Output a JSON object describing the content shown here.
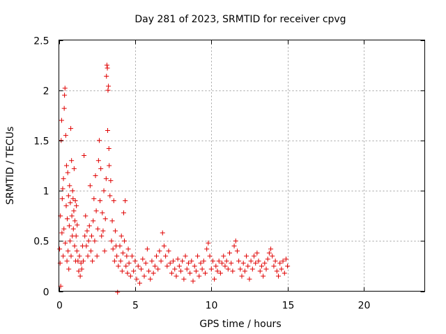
{
  "chart_data": {
    "type": "scatter",
    "title": "Day 281 of 2023, SRMTID for receiver cpvg",
    "xlabel": "GPS time / hours",
    "ylabel": "SRMTID / TECUs",
    "xlim": [
      0,
      24
    ],
    "ylim": [
      0,
      2.5
    ],
    "xticks": [
      0,
      5,
      10,
      15,
      20
    ],
    "xtick_labels": [
      "0",
      "5",
      "10",
      "15",
      "20"
    ],
    "yticks": [
      0,
      0.5,
      1,
      1.5,
      2,
      2.5
    ],
    "ytick_labels": [
      "0",
      "0.5",
      "1",
      "1.5",
      "2",
      "2.5"
    ],
    "grid": true,
    "marker": "+",
    "marker_color": "#e00000",
    "series": [
      {
        "name": "SRMTID",
        "points": [
          [
            0.05,
            0.42
          ],
          [
            0.08,
            0.28
          ],
          [
            0.1,
            0.75
          ],
          [
            0.12,
            0.05
          ],
          [
            0.15,
            1.5
          ],
          [
            0.18,
            1.7
          ],
          [
            0.2,
            0.58
          ],
          [
            0.22,
            0.92
          ],
          [
            0.25,
            1.02
          ],
          [
            0.28,
            0.35
          ],
          [
            0.3,
            1.12
          ],
          [
            0.33,
            0.62
          ],
          [
            0.35,
            1.82
          ],
          [
            0.37,
            1.95
          ],
          [
            0.4,
            2.02
          ],
          [
            0.42,
            0.48
          ],
          [
            0.45,
            1.55
          ],
          [
            0.48,
            0.85
          ],
          [
            0.5,
            1.25
          ],
          [
            0.53,
            0.3
          ],
          [
            0.55,
            0.72
          ],
          [
            0.58,
            1.18
          ],
          [
            0.6,
            0.4
          ],
          [
            0.63,
            0.95
          ],
          [
            0.65,
            0.22
          ],
          [
            0.68,
            0.65
          ],
          [
            0.7,
            1.05
          ],
          [
            0.73,
            0.5
          ],
          [
            0.75,
            0.88
          ],
          [
            0.78,
            1.62
          ],
          [
            0.8,
            0.35
          ],
          [
            0.83,
            1.3
          ],
          [
            0.85,
            0.75
          ],
          [
            0.88,
            0.55
          ],
          [
            0.9,
            1.0
          ],
          [
            0.93,
            0.92
          ],
          [
            0.95,
            0.62
          ],
          [
            0.98,
            0.8
          ],
          [
            1.0,
            1.22
          ],
          [
            1.03,
            0.45
          ],
          [
            1.05,
            0.7
          ],
          [
            1.08,
            0.9
          ],
          [
            1.1,
            0.3
          ],
          [
            1.13,
            0.55
          ],
          [
            1.15,
            0.85
          ],
          [
            1.18,
            0.4
          ],
          [
            1.2,
            0.66
          ],
          [
            1.25,
            0.3
          ],
          [
            1.3,
            0.2
          ],
          [
            1.35,
            0.35
          ],
          [
            1.4,
            0.15
          ],
          [
            1.45,
            0.28
          ],
          [
            1.5,
            0.22
          ],
          [
            1.55,
            0.45
          ],
          [
            1.6,
            0.3
          ],
          [
            1.65,
            1.35
          ],
          [
            1.7,
            0.55
          ],
          [
            1.75,
            0.75
          ],
          [
            1.8,
            0.45
          ],
          [
            1.85,
            0.6
          ],
          [
            1.9,
            0.35
          ],
          [
            1.95,
            0.5
          ],
          [
            2.0,
            0.65
          ],
          [
            2.05,
            1.05
          ],
          [
            2.1,
            0.4
          ],
          [
            2.15,
            0.55
          ],
          [
            2.2,
            0.3
          ],
          [
            2.25,
            0.7
          ],
          [
            2.3,
            0.92
          ],
          [
            2.35,
            0.5
          ],
          [
            2.4,
            1.15
          ],
          [
            2.45,
            0.8
          ],
          [
            2.5,
            0.35
          ],
          [
            2.55,
            0.62
          ],
          [
            2.6,
            1.3
          ],
          [
            2.65,
            1.5
          ],
          [
            2.7,
            0.9
          ],
          [
            2.75,
            1.22
          ],
          [
            2.8,
            0.55
          ],
          [
            2.85,
            0.78
          ],
          [
            2.9,
            0.6
          ],
          [
            2.95,
            1.0
          ],
          [
            3.0,
            0.4
          ],
          [
            3.05,
            0.72
          ],
          [
            3.1,
            1.12
          ],
          [
            3.12,
            2.14
          ],
          [
            3.15,
            2.25
          ],
          [
            3.18,
            2.22
          ],
          [
            3.2,
            1.6
          ],
          [
            3.22,
            2.0
          ],
          [
            3.25,
            2.04
          ],
          [
            3.28,
            1.42
          ],
          [
            3.3,
            1.25
          ],
          [
            3.35,
            0.95
          ],
          [
            3.4,
            1.1
          ],
          [
            3.45,
            0.5
          ],
          [
            3.5,
            0.7
          ],
          [
            3.55,
            0.42
          ],
          [
            3.6,
            0.9
          ],
          [
            3.65,
            0.3
          ],
          [
            3.7,
            0.6
          ],
          [
            3.75,
            0.45
          ],
          [
            3.8,
            0.35
          ],
          [
            3.85,
            -0.01
          ],
          [
            3.9,
            0.25
          ],
          [
            4.0,
            0.45
          ],
          [
            4.05,
            0.3
          ],
          [
            4.1,
            0.55
          ],
          [
            4.15,
            0.2
          ],
          [
            4.2,
            0.38
          ],
          [
            4.25,
            0.78
          ],
          [
            4.3,
            0.5
          ],
          [
            4.35,
            0.9
          ],
          [
            4.4,
            0.25
          ],
          [
            4.45,
            0.35
          ],
          [
            4.5,
            0.18
          ],
          [
            4.55,
            0.42
          ],
          [
            4.6,
            0.28
          ],
          [
            4.7,
            0.15
          ],
          [
            4.8,
            0.35
          ],
          [
            4.9,
            0.2
          ],
          [
            5.0,
            0.3
          ],
          [
            5.1,
            0.12
          ],
          [
            5.2,
            0.25
          ],
          [
            5.3,
            0.08
          ],
          [
            5.4,
            0.22
          ],
          [
            5.5,
            0.32
          ],
          [
            5.6,
            0.15
          ],
          [
            5.7,
            0.28
          ],
          [
            5.8,
            0.42
          ],
          [
            5.9,
            0.2
          ],
          [
            6.0,
            0.12
          ],
          [
            6.1,
            0.3
          ],
          [
            6.2,
            0.18
          ],
          [
            6.3,
            0.25
          ],
          [
            6.4,
            0.35
          ],
          [
            6.5,
            0.22
          ],
          [
            6.6,
            0.4
          ],
          [
            6.7,
            0.3
          ],
          [
            6.8,
            0.58
          ],
          [
            6.9,
            0.45
          ],
          [
            7.0,
            0.35
          ],
          [
            7.1,
            0.25
          ],
          [
            7.2,
            0.4
          ],
          [
            7.3,
            0.28
          ],
          [
            7.4,
            0.18
          ],
          [
            7.5,
            0.3
          ],
          [
            7.6,
            0.22
          ],
          [
            7.7,
            0.15
          ],
          [
            7.8,
            0.32
          ],
          [
            7.9,
            0.25
          ],
          [
            8.0,
            0.2
          ],
          [
            8.1,
            0.3
          ],
          [
            8.2,
            0.12
          ],
          [
            8.3,
            0.35
          ],
          [
            8.4,
            0.22
          ],
          [
            8.5,
            0.28
          ],
          [
            8.6,
            0.18
          ],
          [
            8.7,
            0.3
          ],
          [
            8.8,
            0.1
          ],
          [
            8.9,
            0.25
          ],
          [
            9.0,
            0.2
          ],
          [
            9.1,
            0.35
          ],
          [
            9.2,
            0.15
          ],
          [
            9.3,
            0.28
          ],
          [
            9.4,
            0.22
          ],
          [
            9.5,
            0.3
          ],
          [
            9.6,
            0.18
          ],
          [
            9.7,
            0.42
          ],
          [
            9.8,
            0.48
          ],
          [
            9.9,
            0.35
          ],
          [
            10.0,
            0.22
          ],
          [
            10.1,
            0.3
          ],
          [
            10.2,
            0.12
          ],
          [
            10.3,
            0.25
          ],
          [
            10.4,
            0.2
          ],
          [
            10.5,
            0.3
          ],
          [
            10.6,
            0.18
          ],
          [
            10.7,
            0.28
          ],
          [
            10.8,
            0.35
          ],
          [
            10.9,
            0.25
          ],
          [
            11.0,
            0.3
          ],
          [
            11.1,
            0.22
          ],
          [
            11.2,
            0.38
          ],
          [
            11.3,
            0.28
          ],
          [
            11.4,
            0.2
          ],
          [
            11.5,
            0.45
          ],
          [
            11.6,
            0.5
          ],
          [
            11.7,
            0.4
          ],
          [
            11.8,
            0.3
          ],
          [
            11.9,
            0.22
          ],
          [
            12.0,
            0.15
          ],
          [
            12.1,
            0.28
          ],
          [
            12.2,
            0.2
          ],
          [
            12.3,
            0.35
          ],
          [
            12.4,
            0.25
          ],
          [
            12.5,
            0.12
          ],
          [
            12.6,
            0.3
          ],
          [
            12.7,
            0.22
          ],
          [
            12.8,
            0.35
          ],
          [
            12.9,
            0.28
          ],
          [
            13.0,
            0.38
          ],
          [
            13.1,
            0.3
          ],
          [
            13.2,
            0.2
          ],
          [
            13.3,
            0.25
          ],
          [
            13.4,
            0.15
          ],
          [
            13.5,
            0.28
          ],
          [
            13.6,
            0.22
          ],
          [
            13.7,
            0.32
          ],
          [
            13.8,
            0.38
          ],
          [
            13.9,
            0.42
          ],
          [
            14.0,
            0.35
          ],
          [
            14.1,
            0.25
          ],
          [
            14.2,
            0.3
          ],
          [
            14.3,
            0.2
          ],
          [
            14.4,
            0.15
          ],
          [
            14.5,
            0.28
          ],
          [
            14.6,
            0.22
          ],
          [
            14.7,
            0.3
          ],
          [
            14.8,
            0.18
          ],
          [
            14.9,
            0.32
          ],
          [
            15.0,
            0.25
          ]
        ]
      }
    ]
  }
}
